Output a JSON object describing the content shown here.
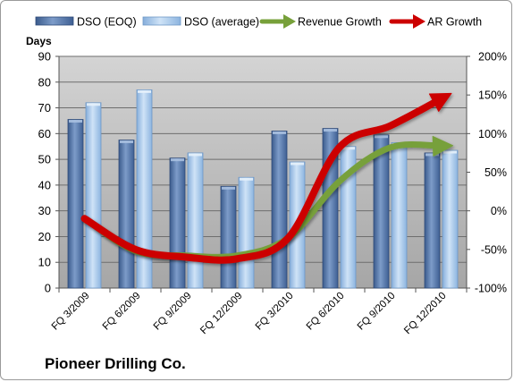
{
  "chart_data": {
    "type": "bar",
    "title": "",
    "left_axis_label": "Days",
    "categories": [
      "FQ 3/2009",
      "FQ 6/2009",
      "FQ 9/2009",
      "FQ 12/2009",
      "FQ 3/2010",
      "FQ 6/2010",
      "FQ 9/2010",
      "FQ 12/2010"
    ],
    "series": [
      {
        "name": "DSO (EOQ)",
        "kind": "bar",
        "axis": "left",
        "values": [
          65.5,
          57.5,
          50.5,
          39.5,
          61,
          62,
          59.5,
          52.5
        ]
      },
      {
        "name": "DSO (average)",
        "kind": "bar",
        "axis": "left",
        "values": [
          72,
          77,
          52.5,
          43,
          49,
          55,
          56.5,
          53.5
        ]
      },
      {
        "name": "Revenue Growth",
        "kind": "line-arrow",
        "axis": "right",
        "values": [
          -10,
          -52,
          -58,
          -58,
          -35,
          38,
          82,
          84
        ]
      },
      {
        "name": "AR Growth",
        "kind": "line-arrow",
        "axis": "right",
        "values": [
          -10,
          -50,
          -60,
          -62,
          -35,
          82,
          110,
          145
        ]
      }
    ],
    "left_axis": {
      "min": 0,
      "max": 90,
      "step": 10,
      "ticks": [
        "0",
        "10",
        "20",
        "30",
        "40",
        "50",
        "60",
        "70",
        "80",
        "90"
      ]
    },
    "right_axis": {
      "min": -100,
      "max": 200,
      "step": 50,
      "ticks": [
        "-100%",
        "-50%",
        "0%",
        "50%",
        "100%",
        "150%",
        "200%"
      ]
    },
    "grid": true,
    "legend_position": "top",
    "colors": {
      "dso_eoq": "#4f6fa0",
      "dso_avg": "#9fc4ec",
      "revenue_growth": "#77a03a",
      "ar_growth": "#cc0000",
      "plot_top": "#d4d4d4",
      "plot_bottom": "#a6a6a6",
      "gridline": "#6e6e6e"
    }
  },
  "footer": {
    "company": "Pioneer Drilling Co."
  }
}
